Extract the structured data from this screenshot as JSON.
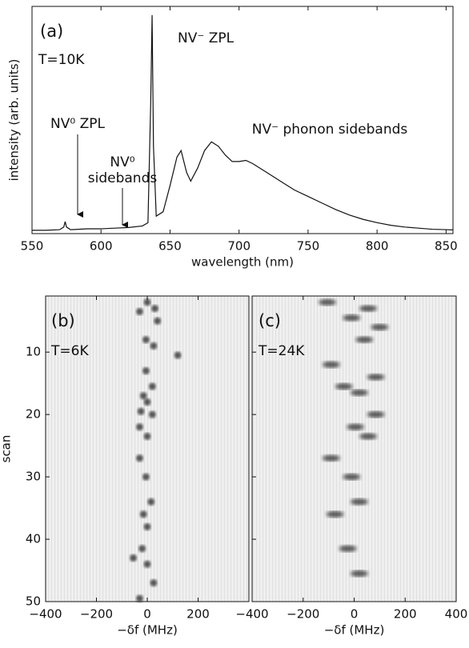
{
  "chart_data": [
    {
      "type": "line",
      "annotations": [
        "(a)",
        "T=10K",
        "NV⁻ ZPL",
        "NV⁰ ZPL",
        "NV⁰",
        "sidebands",
        "NV⁻ phonon sidebands"
      ],
      "xlabel": "wavelength (nm)",
      "ylabel": "intensity (arb. units)",
      "x": [
        550,
        560,
        570,
        573,
        574,
        575,
        578,
        590,
        600,
        610,
        620,
        630,
        634,
        636,
        637,
        638,
        640,
        645,
        650,
        655,
        658,
        662,
        665,
        670,
        675,
        680,
        685,
        690,
        695,
        700,
        705,
        710,
        720,
        730,
        740,
        750,
        760,
        770,
        780,
        790,
        800,
        810,
        820,
        830,
        840,
        850,
        855
      ],
      "values": [
        1.5,
        1.5,
        1.8,
        3,
        5.5,
        3,
        1.8,
        2.2,
        2.2,
        2.5,
        2.8,
        3.5,
        5,
        60,
        100,
        40,
        8,
        10,
        22,
        35,
        38,
        28,
        24,
        30,
        38,
        42,
        40,
        36,
        33,
        33,
        33.5,
        32,
        28,
        24,
        20,
        17,
        14,
        11,
        8.5,
        6.5,
        5,
        3.8,
        3,
        2.5,
        2,
        1.8,
        1.7
      ],
      "color": "#111111",
      "xlim": [
        550,
        855
      ],
      "ylim": [
        0,
        104
      ],
      "xticks": [
        550,
        600,
        650,
        700,
        750,
        800,
        850
      ]
    },
    {
      "type": "scatter",
      "annotations": [
        "(b)",
        "T=6K"
      ],
      "xlabel": "−δf (MHz)",
      "ylabel": "scan",
      "x": [
        0,
        30,
        -30,
        40,
        -5,
        25,
        120,
        -5,
        20,
        -15,
        0,
        -25,
        20,
        -30,
        0,
        -30,
        -5,
        15,
        -15,
        0,
        -20,
        -55,
        0,
        25,
        -30
      ],
      "y": [
        2,
        3,
        3.5,
        5,
        8,
        9,
        10.5,
        13,
        15.5,
        17,
        18,
        19.5,
        20,
        22,
        23.5,
        27,
        30,
        34,
        36,
        38,
        41.5,
        43,
        44,
        47,
        49.5
      ],
      "color": "#222222",
      "xlim": [
        -400,
        400
      ],
      "ylim": [
        1,
        50
      ],
      "y_inverted": true,
      "xticks": [
        {
          "value": -400,
          "label": "−400"
        },
        {
          "value": -200,
          "label": "−200"
        },
        0,
        200
      ],
      "yticks": [
        10,
        20,
        30,
        40,
        50
      ]
    },
    {
      "type": "scatter",
      "annotations": [
        "(c)",
        "T=24K"
      ],
      "xlabel": "−δf (MHz)",
      "x": [
        -105,
        55,
        100,
        -10,
        40,
        -90,
        85,
        -40,
        20,
        85,
        5,
        55,
        -90,
        -10,
        20,
        -75,
        -25,
        20
      ],
      "y": [
        2,
        3,
        6,
        4.5,
        8,
        12,
        14,
        15.5,
        16.5,
        20,
        22,
        23.5,
        27,
        30,
        34,
        36,
        41.5,
        45.5
      ],
      "color": "#222222",
      "xlim": [
        -400,
        400
      ],
      "ylim": [
        1,
        50
      ],
      "y_inverted": true,
      "xticks": [
        {
          "value": -400,
          "label": "−400"
        },
        {
          "value": -200,
          "label": "−200"
        },
        0,
        200,
        400
      ],
      "yticks": [
        10,
        20,
        30,
        40,
        50
      ]
    }
  ]
}
